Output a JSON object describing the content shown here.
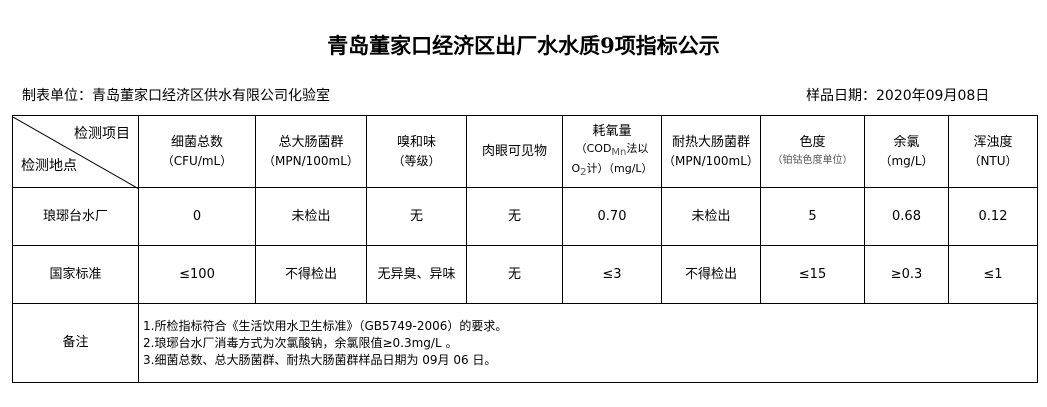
{
  "title": "青岛董家口经济区出厂水水质9项指标公示",
  "unit": "制表单位：青岛董家口经济区供水有限公司化验室",
  "date": "样品日期：2020年09月08日",
  "header": {
    "corner_top": "检测项目",
    "corner_bottom": "检测地点",
    "cols": [
      {
        "name": "细菌总数",
        "unit": "（CFU/mL）"
      },
      {
        "name": "总大肠菌群",
        "unit": "（MPN/100mL）"
      },
      {
        "name": "嗅和味",
        "unit": "（等级）"
      },
      {
        "name": "肉眼可见物",
        "unit": ""
      },
      {
        "name": "耗氧量",
        "unit": "（COD",
        "unit_sub": "Mn",
        "unit2": "法以",
        "unit3": "O",
        "unit3_sub": "2",
        "unit4": "计）（mg/L）"
      },
      {
        "name": "耐热大肠菌群",
        "unit": "（MPN/100mL）"
      },
      {
        "name": "色度",
        "unit": "（铂钴色度单位）"
      },
      {
        "name": "余氯",
        "unit": "（mg/L）"
      },
      {
        "name": "浑浊度",
        "unit": "（NTU）"
      }
    ]
  },
  "rows": [
    {
      "label": "琅琊台水厂",
      "values": [
        "0",
        "未检出",
        "无",
        "无",
        "0.70",
        "未检出",
        "5",
        "0.68",
        "0.12"
      ]
    },
    {
      "label": "国家标准",
      "values": [
        "≤100",
        "不得检出",
        "无异臭、异味",
        "无",
        "≤3",
        "不得检出",
        "≤15",
        "≥0.3",
        "≤1"
      ]
    }
  ],
  "notes": {
    "label": "备注",
    "lines": [
      "1.所检指标符合《生活饮用水卫生标准》（GB5749-2006）的要求。",
      "2.琅琊台水厂消毒方式为次氯酸钠，余氯限值≥0.3mg/L 。",
      "3.细菌总数、总大肠菌群、耐热大肠菌群样品日期为 09月 06 日。"
    ]
  }
}
